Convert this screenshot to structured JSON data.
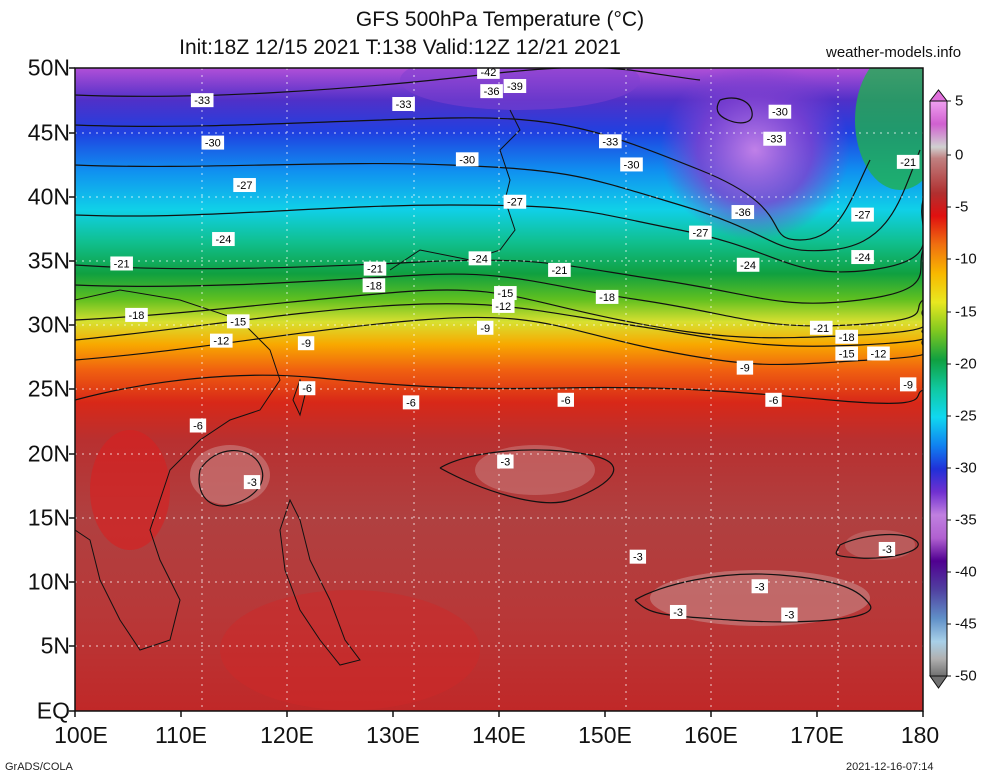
{
  "header": {
    "title": "GFS 500hPa Temperature (°C)",
    "subtitle": "Init:18Z 12/15 2021 T:138 Valid:12Z 12/21 2021",
    "site": "weather-models.info"
  },
  "axes": {
    "lat_labels": [
      "50N",
      "45N",
      "40N",
      "35N",
      "30N",
      "25N",
      "20N",
      "15N",
      "10N",
      "5N",
      "EQ"
    ],
    "lon_labels": [
      "100E",
      "110E",
      "120E",
      "130E",
      "140E",
      "150E",
      "160E",
      "170E",
      "180"
    ]
  },
  "colorbar": {
    "labels": [
      "5",
      "0",
      "-5",
      "-10",
      "-15",
      "-20",
      "-25",
      "-30",
      "-35",
      "-40",
      "-45",
      "-50"
    ],
    "colors": [
      "#f4b6f0",
      "#e070dc",
      "#d8d4d4",
      "#c08080",
      "#a84848",
      "#cc2020",
      "#e04010",
      "#f07010",
      "#f8a800",
      "#f0e020",
      "#c0e040",
      "#60c020",
      "#10a040",
      "#10c8a0",
      "#10d8f0",
      "#1090f0",
      "#2040e0",
      "#3010c0",
      "#8040d0",
      "#b070e0",
      "#d0a0f0",
      "#500080",
      "#603090",
      "#4050a0",
      "#5070b0",
      "#70a0d0",
      "#a0d0e8",
      "#c0c0c0",
      "#808080"
    ]
  },
  "contours": [
    {
      "v": "-42",
      "lon": 139,
      "lat": 49.7
    },
    {
      "v": "-39",
      "lon": 141.5,
      "lat": 48.6
    },
    {
      "v": "-36",
      "lon": 139.3,
      "lat": 48.2
    },
    {
      "v": "-33",
      "lon": 112,
      "lat": 47.5
    },
    {
      "v": "-33",
      "lon": 131,
      "lat": 47.2
    },
    {
      "v": "-33",
      "lon": 150.5,
      "lat": 44.3
    },
    {
      "v": "-33",
      "lon": 166,
      "lat": 44.5
    },
    {
      "v": "-30",
      "lon": 166.5,
      "lat": 46.6
    },
    {
      "v": "-30",
      "lon": 113,
      "lat": 44.2
    },
    {
      "v": "-30",
      "lon": 137,
      "lat": 42.9
    },
    {
      "v": "-30",
      "lon": 152.5,
      "lat": 42.5
    },
    {
      "v": "-27",
      "lon": 116,
      "lat": 40.9
    },
    {
      "v": "-27",
      "lon": 141.5,
      "lat": 39.6
    },
    {
      "v": "-27",
      "lon": 159,
      "lat": 37.2
    },
    {
      "v": "-27",
      "lon": 174.3,
      "lat": 38.6
    },
    {
      "v": "-36",
      "lon": 163,
      "lat": 38.8
    },
    {
      "v": "-21",
      "lon": 178.6,
      "lat": 42.7
    },
    {
      "v": "-24",
      "lon": 114,
      "lat": 36.7
    },
    {
      "v": "-24",
      "lon": 138.2,
      "lat": 35.2
    },
    {
      "v": "-24",
      "lon": 163.5,
      "lat": 34.7
    },
    {
      "v": "-24",
      "lon": 174.3,
      "lat": 35.3
    },
    {
      "v": "-21",
      "lon": 104.4,
      "lat": 34.8
    },
    {
      "v": "-21",
      "lon": 128.3,
      "lat": 34.4
    },
    {
      "v": "-21",
      "lon": 145.7,
      "lat": 34.3
    },
    {
      "v": "-21",
      "lon": 170.4,
      "lat": 29.8
    },
    {
      "v": "-18",
      "lon": 128.2,
      "lat": 33.1
    },
    {
      "v": "-18",
      "lon": 105.8,
      "lat": 30.8
    },
    {
      "v": "-18",
      "lon": 150.2,
      "lat": 32.2
    },
    {
      "v": "-18",
      "lon": 172.8,
      "lat": 29.1
    },
    {
      "v": "-15",
      "lon": 140.6,
      "lat": 32.5
    },
    {
      "v": "-15",
      "lon": 115.4,
      "lat": 30.3
    },
    {
      "v": "-15",
      "lon": 172.8,
      "lat": 27.8
    },
    {
      "v": "-12",
      "lon": 140.4,
      "lat": 31.5
    },
    {
      "v": "-12",
      "lon": 113.8,
      "lat": 28.8
    },
    {
      "v": "-12",
      "lon": 175.8,
      "lat": 27.8
    },
    {
      "v": "-9",
      "lon": 121.8,
      "lat": 28.6
    },
    {
      "v": "-9",
      "lon": 138.7,
      "lat": 29.8
    },
    {
      "v": "-9",
      "lon": 163.2,
      "lat": 26.7
    },
    {
      "v": "-9",
      "lon": 178.6,
      "lat": 25.4
    },
    {
      "v": "-6",
      "lon": 121.9,
      "lat": 25.1
    },
    {
      "v": "-6",
      "lon": 131.7,
      "lat": 24.0
    },
    {
      "v": "-6",
      "lon": 146.3,
      "lat": 24.2
    },
    {
      "v": "-6",
      "lon": 165.9,
      "lat": 24.2
    },
    {
      "v": "-6",
      "lon": 111.6,
      "lat": 22.2
    },
    {
      "v": "-3",
      "lon": 140.6,
      "lat": 19.4
    },
    {
      "v": "-3",
      "lon": 116.7,
      "lat": 17.8
    },
    {
      "v": "-3",
      "lon": 153.1,
      "lat": 12.0
    },
    {
      "v": "-3",
      "lon": 176.6,
      "lat": 12.6
    },
    {
      "v": "-3",
      "lon": 164.6,
      "lat": 9.7
    },
    {
      "v": "-3",
      "lon": 156.9,
      "lat": 7.7
    },
    {
      "v": "-3",
      "lon": 167.4,
      "lat": 7.5
    }
  ],
  "footer": {
    "left": "GrADS/COLA",
    "right": "2021-12-16-07:14"
  }
}
